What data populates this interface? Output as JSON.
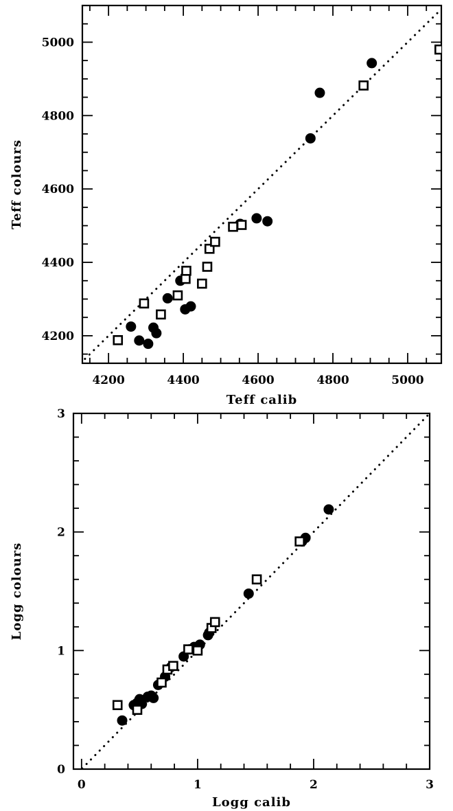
{
  "chart_data": [
    {
      "type": "scatter",
      "xlabel": "Teff calib",
      "ylabel": "Teff colours",
      "xlim": [
        4130,
        5090
      ],
      "ylim": [
        4125,
        5100
      ],
      "xticks": [
        4200,
        4400,
        4600,
        4800,
        5000
      ],
      "yticks": [
        4200,
        4400,
        4600,
        4800,
        5000
      ],
      "xtick_labels": [
        "4200",
        "4400",
        "4600",
        "4800",
        "5000"
      ],
      "ytick_labels": [
        "4200",
        "4400",
        "4600",
        "4800",
        "5000"
      ],
      "x_minor_step": 50,
      "y_minor_step": 50,
      "reference_line": "y = x (dotted)",
      "series": [
        {
          "marker": "filled-circle",
          "points": [
            [
              4260,
              4225
            ],
            [
              4282,
              4187
            ],
            [
              4306,
              4178
            ],
            [
              4320,
              4222
            ],
            [
              4328,
              4207
            ],
            [
              4358,
              4302
            ],
            [
              4392,
              4350
            ],
            [
              4405,
              4272
            ],
            [
              4420,
              4280
            ],
            [
              4552,
              4505
            ],
            [
              4596,
              4520
            ],
            [
              4625,
              4512
            ],
            [
              4740,
              4738
            ],
            [
              4765,
              4862
            ],
            [
              4904,
              4943
            ]
          ]
        },
        {
          "marker": "open-square",
          "points": [
            [
              4225,
              4188
            ],
            [
              4295,
              4288
            ],
            [
              4340,
              4258
            ],
            [
              4385,
              4310
            ],
            [
              4406,
              4355
            ],
            [
              4408,
              4377
            ],
            [
              4450,
              4342
            ],
            [
              4464,
              4388
            ],
            [
              4470,
              4437
            ],
            [
              4485,
              4456
            ],
            [
              4533,
              4497
            ],
            [
              4556,
              4502
            ],
            [
              4882,
              4882
            ],
            [
              5085,
              4980
            ]
          ]
        }
      ]
    },
    {
      "type": "scatter",
      "xlabel": "Logg calib",
      "ylabel": "Logg colours",
      "xlim": [
        -0.07,
        3
      ],
      "ylim": [
        0,
        3
      ],
      "xticks": [
        0,
        1,
        2,
        3
      ],
      "yticks": [
        0,
        1,
        2,
        3
      ],
      "xtick_labels": [
        "0",
        "1",
        "2",
        "3"
      ],
      "ytick_labels": [
        "0",
        "1",
        "2",
        "3"
      ],
      "x_minor_step": 0.2,
      "y_minor_step": 0.2,
      "reference_line": "y = x (dotted)",
      "series": [
        {
          "marker": "filled-circle",
          "points": [
            [
              0.35,
              0.41
            ],
            [
              0.45,
              0.54
            ],
            [
              0.48,
              0.56
            ],
            [
              0.5,
              0.59
            ],
            [
              0.52,
              0.55
            ],
            [
              0.57,
              0.61
            ],
            [
              0.6,
              0.62
            ],
            [
              0.62,
              0.6
            ],
            [
              0.66,
              0.71
            ],
            [
              0.72,
              0.78
            ],
            [
              0.77,
              0.86
            ],
            [
              0.88,
              0.95
            ],
            [
              0.93,
              1.01
            ],
            [
              0.97,
              1.03
            ],
            [
              1.02,
              1.05
            ],
            [
              1.09,
              1.13
            ],
            [
              1.1,
              1.15
            ],
            [
              1.44,
              1.48
            ],
            [
              1.9,
              1.92
            ],
            [
              1.93,
              1.95
            ],
            [
              2.13,
              2.19
            ]
          ]
        },
        {
          "marker": "open-square",
          "points": [
            [
              0.31,
              0.54
            ],
            [
              0.48,
              0.5
            ],
            [
              0.69,
              0.73
            ],
            [
              0.74,
              0.84
            ],
            [
              0.79,
              0.87
            ],
            [
              0.92,
              1.01
            ],
            [
              1.0,
              1.0
            ],
            [
              1.12,
              1.19
            ],
            [
              1.15,
              1.24
            ],
            [
              1.51,
              1.6
            ],
            [
              1.88,
              1.92
            ]
          ]
        }
      ]
    }
  ]
}
